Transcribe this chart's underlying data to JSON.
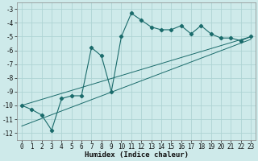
{
  "xlabel": "Humidex (Indice chaleur)",
  "background_color": "#ceeaea",
  "grid_color": "#aed4d4",
  "line_color": "#1a6b6b",
  "xlim": [
    -0.5,
    23.5
  ],
  "ylim": [
    -12.5,
    -2.5
  ],
  "yticks": [
    -12,
    -11,
    -10,
    -9,
    -8,
    -7,
    -6,
    -5,
    -4,
    -3
  ],
  "xticks": [
    0,
    1,
    2,
    3,
    4,
    5,
    6,
    7,
    8,
    9,
    10,
    11,
    12,
    13,
    14,
    15,
    16,
    17,
    18,
    19,
    20,
    21,
    22,
    23
  ],
  "main_x": [
    0,
    1,
    2,
    3,
    4,
    5,
    6,
    7,
    8,
    9,
    10,
    11,
    12,
    13,
    14,
    15,
    16,
    17,
    18,
    19,
    20,
    21,
    22,
    23
  ],
  "main_y": [
    -10.0,
    -10.3,
    -10.7,
    -11.8,
    -9.5,
    -9.3,
    -9.3,
    -5.8,
    -6.4,
    -9.0,
    -5.0,
    -3.3,
    -3.8,
    -4.3,
    -4.5,
    -4.5,
    -4.2,
    -4.8,
    -4.2,
    -4.8,
    -5.1,
    -5.1,
    -5.3,
    -5.0
  ],
  "line1_x": [
    0,
    23
  ],
  "line1_y": [
    -10.0,
    -5.0
  ],
  "line2_x": [
    0,
    23
  ],
  "line2_y": [
    -11.5,
    -5.2
  ],
  "marker": "D",
  "markersize": 2.2,
  "linewidth": 0.8,
  "thin_linewidth": 0.7,
  "tick_fontsize": 5.5,
  "xlabel_fontsize": 6.5
}
